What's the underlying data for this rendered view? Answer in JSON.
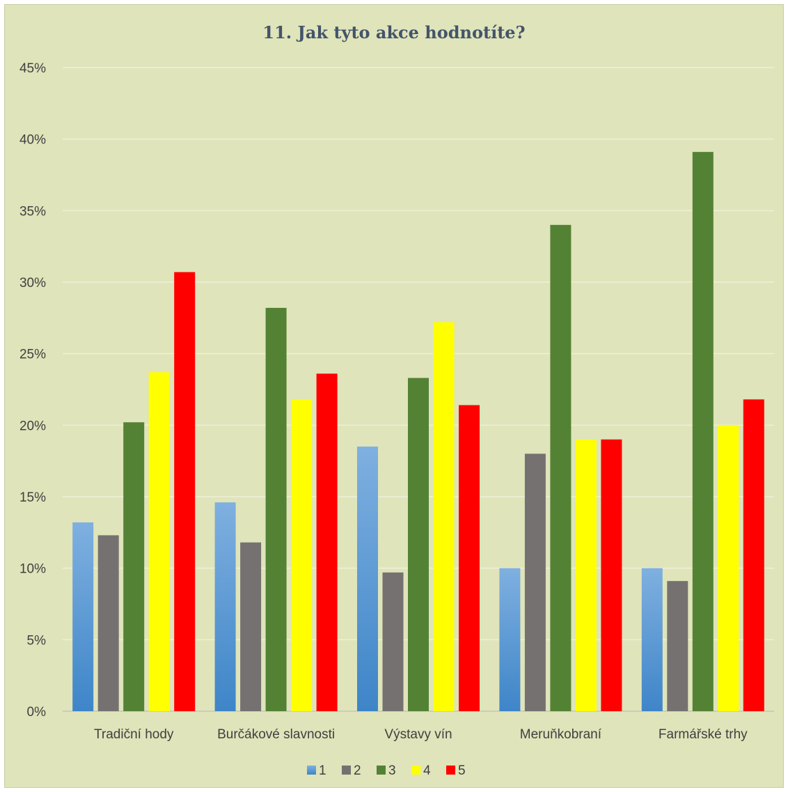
{
  "chart_data": {
    "type": "bar",
    "title": "11. Jak tyto akce hodnotíte?",
    "xlabel": "",
    "ylabel": "",
    "ylim": [
      0,
      45
    ],
    "y_ticks": [
      "0%",
      "5%",
      "10%",
      "15%",
      "20%",
      "25%",
      "30%",
      "35%",
      "40%",
      "45%"
    ],
    "grid": true,
    "legend": "bottom",
    "categories": [
      "Tradiční hody",
      "Burčákové slavnosti",
      "Výstavy vín",
      "Meruňkobraní",
      "Farmářské trhy"
    ],
    "series": [
      {
        "name": "1",
        "color": "#5b9bd5",
        "values": [
          13.2,
          14.6,
          18.5,
          10.0,
          10.0
        ]
      },
      {
        "name": "2",
        "color": "#767171",
        "values": [
          12.3,
          11.8,
          9.7,
          18.0,
          9.1
        ]
      },
      {
        "name": "3",
        "color": "#548235",
        "values": [
          20.2,
          28.2,
          23.3,
          34.0,
          39.1
        ]
      },
      {
        "name": "4",
        "color": "#ffff00",
        "values": [
          23.7,
          21.8,
          27.2,
          19.0,
          20.0
        ]
      },
      {
        "name": "5",
        "color": "#ff0000",
        "values": [
          30.7,
          23.6,
          21.4,
          19.0,
          21.8
        ]
      }
    ]
  }
}
